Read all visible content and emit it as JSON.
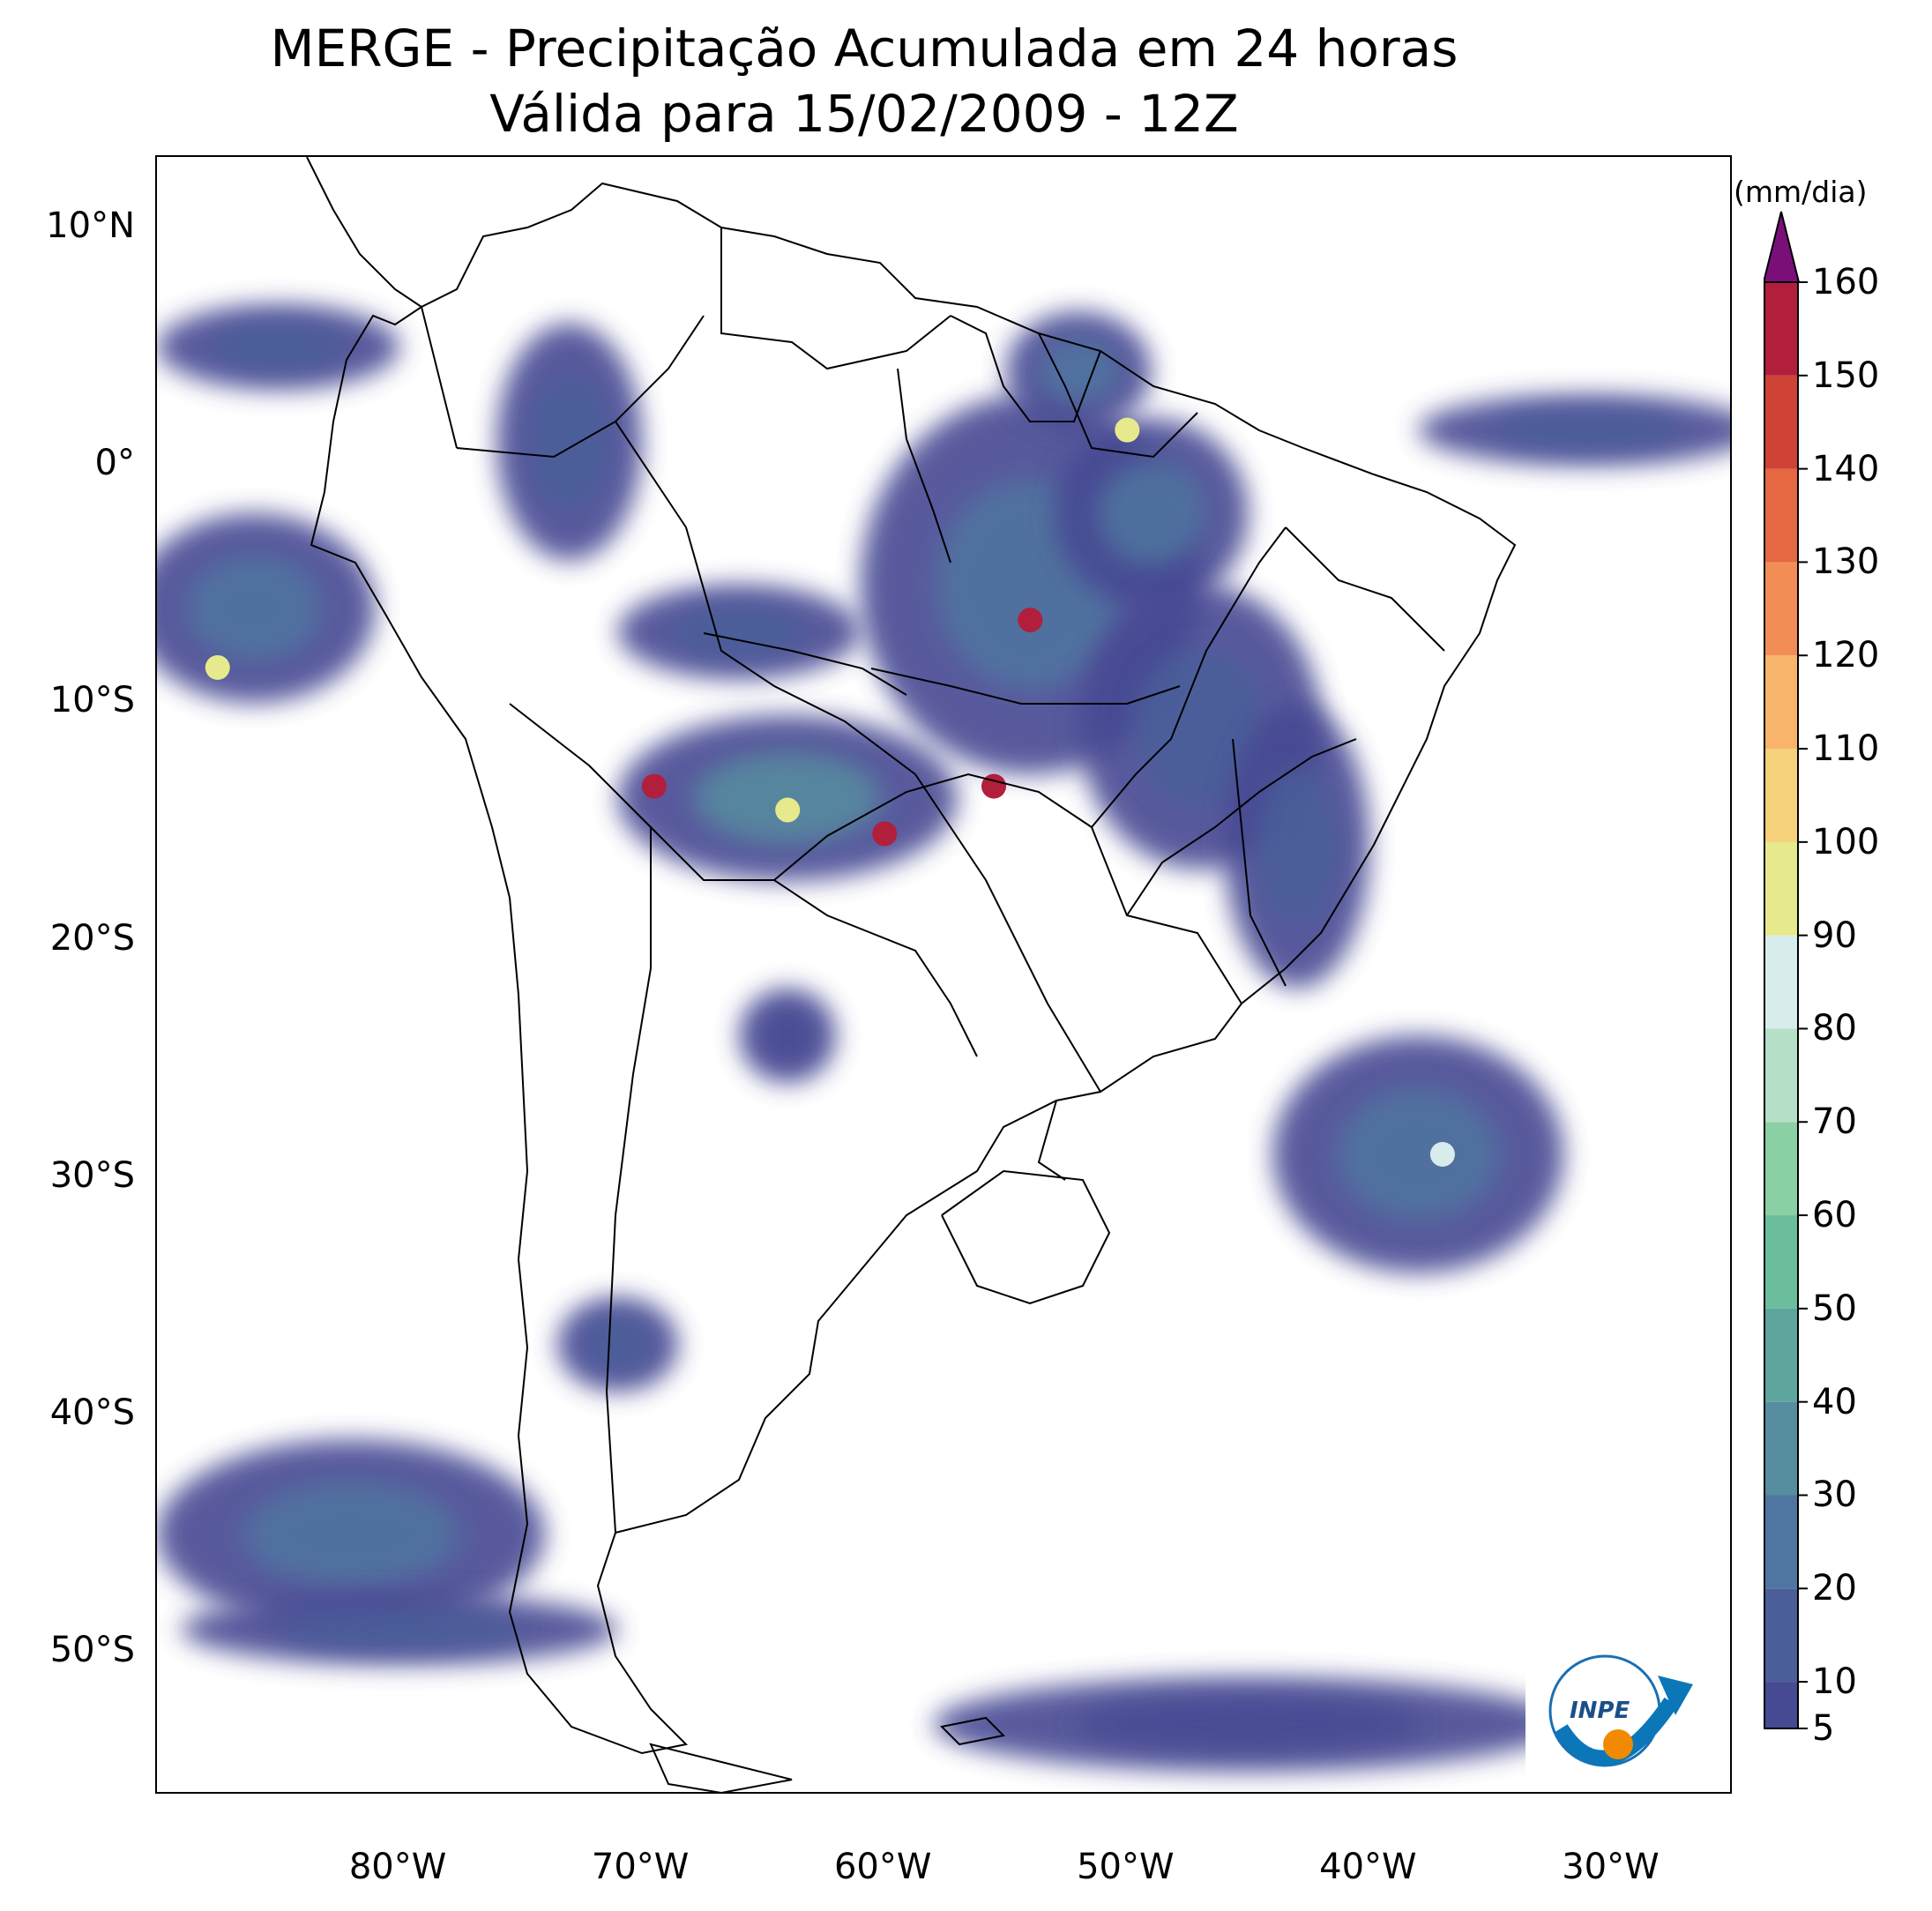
{
  "title": {
    "line1": "MERGE - Precipitação Acumulada em 24 horas",
    "line2": "Válida para 15/02/2009 - 12Z"
  },
  "map": {
    "lon_range": [
      -90,
      -25
    ],
    "lat_range": [
      -56,
      13
    ],
    "lat_ticks": [
      {
        "value": 10,
        "label": "10°N"
      },
      {
        "value": 0,
        "label": "0°"
      },
      {
        "value": -10,
        "label": "10°S"
      },
      {
        "value": -20,
        "label": "20°S"
      },
      {
        "value": -30,
        "label": "30°S"
      },
      {
        "value": -40,
        "label": "40°S"
      },
      {
        "value": -50,
        "label": "50°S"
      }
    ],
    "lon_ticks": [
      {
        "value": -80,
        "label": "80°W"
      },
      {
        "value": -70,
        "label": "70°W"
      },
      {
        "value": -60,
        "label": "60°W"
      },
      {
        "value": -50,
        "label": "50°W"
      },
      {
        "value": -40,
        "label": "40°W"
      },
      {
        "value": -30,
        "label": "30°W"
      }
    ],
    "precip_regions": [
      {
        "lon": -54,
        "lat": -5,
        "rx": 7,
        "ry": 8,
        "mm": 25
      },
      {
        "lon": -49,
        "lat": -2,
        "rx": 4,
        "ry": 4,
        "mm": 30
      },
      {
        "lon": -52,
        "lat": 4,
        "rx": 3,
        "ry": 2.5,
        "mm": 25
      },
      {
        "lon": -47,
        "lat": -11,
        "rx": 5,
        "ry": 6,
        "mm": 20
      },
      {
        "lon": -43,
        "lat": -16,
        "rx": 3,
        "ry": 6,
        "mm": 20
      },
      {
        "lon": -64,
        "lat": -14,
        "rx": 7,
        "ry": 3.5,
        "mm": 40
      },
      {
        "lon": -66,
        "lat": -7,
        "rx": 5,
        "ry": 2,
        "mm": 15
      },
      {
        "lon": -73,
        "lat": 1,
        "rx": 3,
        "ry": 5,
        "mm": 15
      },
      {
        "lon": -85,
        "lat": 5,
        "rx": 5,
        "ry": 1.8,
        "mm": 20
      },
      {
        "lon": -86,
        "lat": -6,
        "rx": 5,
        "ry": 4,
        "mm": 25
      },
      {
        "lon": -38,
        "lat": -29,
        "rx": 6,
        "ry": 5,
        "mm": 25
      },
      {
        "lon": -31,
        "lat": 1.5,
        "rx": 7,
        "ry": 1.5,
        "mm": 20
      },
      {
        "lon": -64,
        "lat": -24,
        "rx": 2,
        "ry": 2,
        "mm": 10
      },
      {
        "lon": -71,
        "lat": -37,
        "rx": 2.5,
        "ry": 2,
        "mm": 15
      },
      {
        "lon": -82,
        "lat": -45,
        "rx": 8,
        "ry": 4,
        "mm": 25
      },
      {
        "lon": -45,
        "lat": -53,
        "rx": 13,
        "ry": 2,
        "mm": 10
      },
      {
        "lon": -80,
        "lat": -49,
        "rx": 9,
        "ry": 1.5,
        "mm": 20
      }
    ],
    "precip_peaks": [
      {
        "lon": -54,
        "lat": -6.5,
        "mm": 160
      },
      {
        "lon": -55.5,
        "lat": -13.5,
        "mm": 160
      },
      {
        "lon": -69.5,
        "lat": -13.5,
        "mm": 155
      },
      {
        "lon": -60,
        "lat": -15.5,
        "mm": 155
      },
      {
        "lon": -64,
        "lat": -14.5,
        "mm": 95
      },
      {
        "lon": -50,
        "lat": 1.5,
        "mm": 95
      },
      {
        "lon": -37,
        "lat": -29,
        "mm": 85
      },
      {
        "lon": -87.5,
        "lat": -8.5,
        "mm": 100
      }
    ]
  },
  "colorbar": {
    "unit_label": "(mm/dia)",
    "min": 5,
    "max": 160,
    "ticks": [
      "5",
      "10",
      "20",
      "30",
      "40",
      "50",
      "60",
      "70",
      "80",
      "90",
      "100",
      "110",
      "120",
      "130",
      "140",
      "150",
      "160"
    ],
    "extend": "max",
    "colors": [
      "#464a93",
      "#4a5f9a",
      "#4f76a0",
      "#568d9f",
      "#5ea59e",
      "#6bbd9c",
      "#8bd0a5",
      "#b5dfc6",
      "#d9ecec",
      "#e6ea8c",
      "#f4d17a",
      "#f7b46a",
      "#f28e55",
      "#e56843",
      "#cf4236",
      "#b21f3c",
      "#8c0b3f",
      "#7a0f7a"
    ]
  },
  "logo": {
    "text": "INPE"
  }
}
